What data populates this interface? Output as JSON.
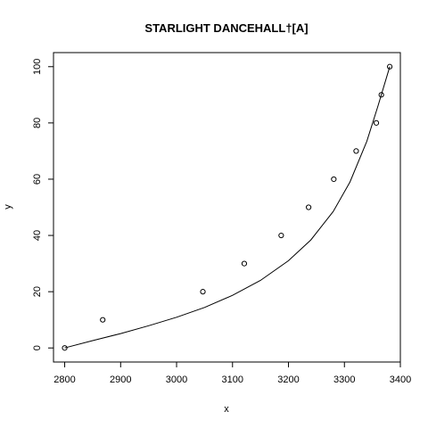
{
  "chart_data": {
    "type": "scatter",
    "title": "STARLIGHT DANCEHALL†[A]",
    "xlabel": "x",
    "ylabel": "y",
    "xlim": [
      2780,
      3400
    ],
    "ylim": [
      -5,
      105
    ],
    "xticks": [
      2800,
      2900,
      3000,
      3100,
      3200,
      3300,
      3400
    ],
    "yticks": [
      0,
      20,
      40,
      60,
      80,
      100
    ],
    "grid": false,
    "points": {
      "x": [
        2800,
        2868,
        3047,
        3121,
        3187,
        3236,
        3281,
        3321,
        3357,
        3366,
        3381
      ],
      "y": [
        0,
        10,
        20,
        30,
        40,
        50,
        60,
        70,
        80,
        90,
        100
      ]
    },
    "fit_curve": {
      "x": [
        2800,
        2850,
        2900,
        2950,
        3000,
        3050,
        3100,
        3150,
        3200,
        3240,
        3280,
        3310,
        3340,
        3360,
        3381
      ],
      "y": [
        0,
        2.6,
        5.1,
        7.9,
        10.9,
        14.4,
        18.7,
        24.0,
        31.0,
        38.4,
        48.5,
        59.0,
        73.5,
        86.0,
        100
      ]
    }
  }
}
